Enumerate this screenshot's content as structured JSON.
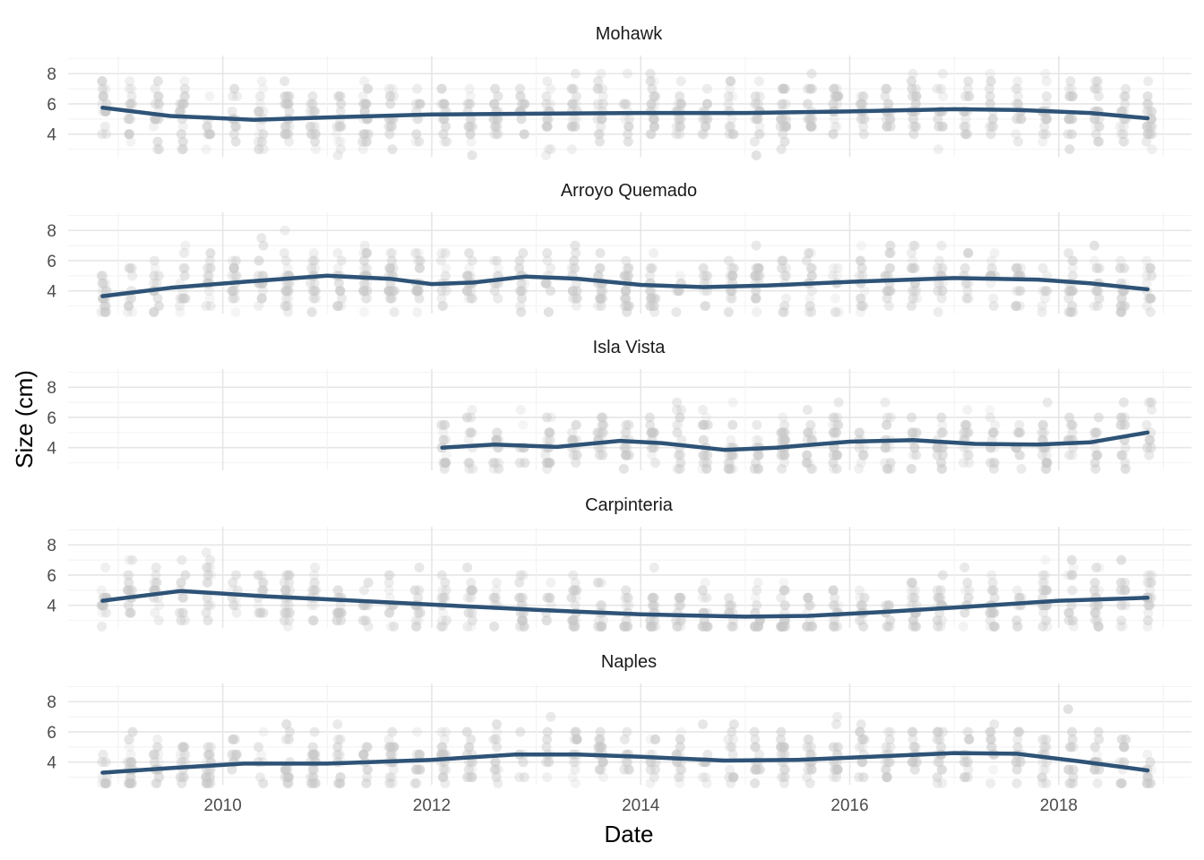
{
  "chart_data": {
    "type": "scatter",
    "xlabel": "Date",
    "ylabel": "Size (cm)",
    "x_range": [
      "2008-07-07",
      "2019-04-08"
    ],
    "x_ticks": [
      "2010",
      "2012",
      "2014",
      "2016",
      "2018"
    ],
    "y_ticks": [
      "4",
      "6",
      "8"
    ],
    "ylim": [
      2.5,
      9.2
    ],
    "grid": true,
    "legend": "none",
    "point_color": "#c8c8c8",
    "line_color": "#2e5377",
    "x_range_years": [
      2008.52,
      2019.27
    ],
    "panels": [
      {
        "site": "Mohawk",
        "x_start": 2008.85,
        "x_end": 2018.85,
        "trend": [
          [
            2008.85,
            5.75
          ],
          [
            2009.5,
            5.2
          ],
          [
            2010.3,
            4.95
          ],
          [
            2011.0,
            5.1
          ],
          [
            2012.0,
            5.3
          ],
          [
            2013.0,
            5.35
          ],
          [
            2014.0,
            5.4
          ],
          [
            2015.0,
            5.4
          ],
          [
            2016.0,
            5.5
          ],
          [
            2017.0,
            5.65
          ],
          [
            2017.6,
            5.6
          ],
          [
            2018.3,
            5.4
          ],
          [
            2018.85,
            5.05
          ]
        ]
      },
      {
        "site": "Arroyo Quemado",
        "x_start": 2008.85,
        "x_end": 2018.85,
        "trend": [
          [
            2008.85,
            3.65
          ],
          [
            2009.5,
            4.2
          ],
          [
            2010.2,
            4.6
          ],
          [
            2011.0,
            5.0
          ],
          [
            2011.6,
            4.8
          ],
          [
            2012.0,
            4.45
          ],
          [
            2012.4,
            4.55
          ],
          [
            2012.9,
            4.95
          ],
          [
            2013.4,
            4.8
          ],
          [
            2014.0,
            4.4
          ],
          [
            2014.6,
            4.25
          ],
          [
            2015.2,
            4.35
          ],
          [
            2016.0,
            4.6
          ],
          [
            2017.0,
            4.85
          ],
          [
            2017.8,
            4.75
          ],
          [
            2018.3,
            4.5
          ],
          [
            2018.85,
            4.1
          ]
        ]
      },
      {
        "site": "Isla Vista",
        "x_start": 2012.1,
        "x_end": 2018.85,
        "trend": [
          [
            2012.1,
            4.0
          ],
          [
            2012.6,
            4.2
          ],
          [
            2013.2,
            4.05
          ],
          [
            2013.8,
            4.45
          ],
          [
            2014.2,
            4.3
          ],
          [
            2014.8,
            3.85
          ],
          [
            2015.3,
            4.0
          ],
          [
            2016.0,
            4.4
          ],
          [
            2016.6,
            4.5
          ],
          [
            2017.2,
            4.25
          ],
          [
            2017.8,
            4.2
          ],
          [
            2018.3,
            4.35
          ],
          [
            2018.85,
            5.0
          ]
        ]
      },
      {
        "site": "Carpinteria",
        "x_start": 2008.85,
        "x_end": 2018.85,
        "trend": [
          [
            2008.85,
            4.3
          ],
          [
            2009.6,
            4.95
          ],
          [
            2010.4,
            4.6
          ],
          [
            2011.0,
            4.4
          ],
          [
            2012.0,
            4.05
          ],
          [
            2013.0,
            3.7
          ],
          [
            2014.0,
            3.4
          ],
          [
            2015.0,
            3.25
          ],
          [
            2015.6,
            3.3
          ],
          [
            2016.3,
            3.55
          ],
          [
            2017.0,
            3.85
          ],
          [
            2018.0,
            4.3
          ],
          [
            2018.85,
            4.5
          ]
        ]
      },
      {
        "site": "Naples",
        "x_start": 2008.85,
        "x_end": 2018.85,
        "trend": [
          [
            2008.85,
            3.3
          ],
          [
            2009.5,
            3.6
          ],
          [
            2010.2,
            3.9
          ],
          [
            2011.0,
            3.9
          ],
          [
            2012.0,
            4.15
          ],
          [
            2012.8,
            4.5
          ],
          [
            2013.4,
            4.5
          ],
          [
            2014.0,
            4.35
          ],
          [
            2014.8,
            4.1
          ],
          [
            2015.5,
            4.15
          ],
          [
            2016.2,
            4.35
          ],
          [
            2017.0,
            4.6
          ],
          [
            2017.6,
            4.55
          ],
          [
            2018.2,
            4.05
          ],
          [
            2018.85,
            3.45
          ]
        ]
      }
    ]
  }
}
